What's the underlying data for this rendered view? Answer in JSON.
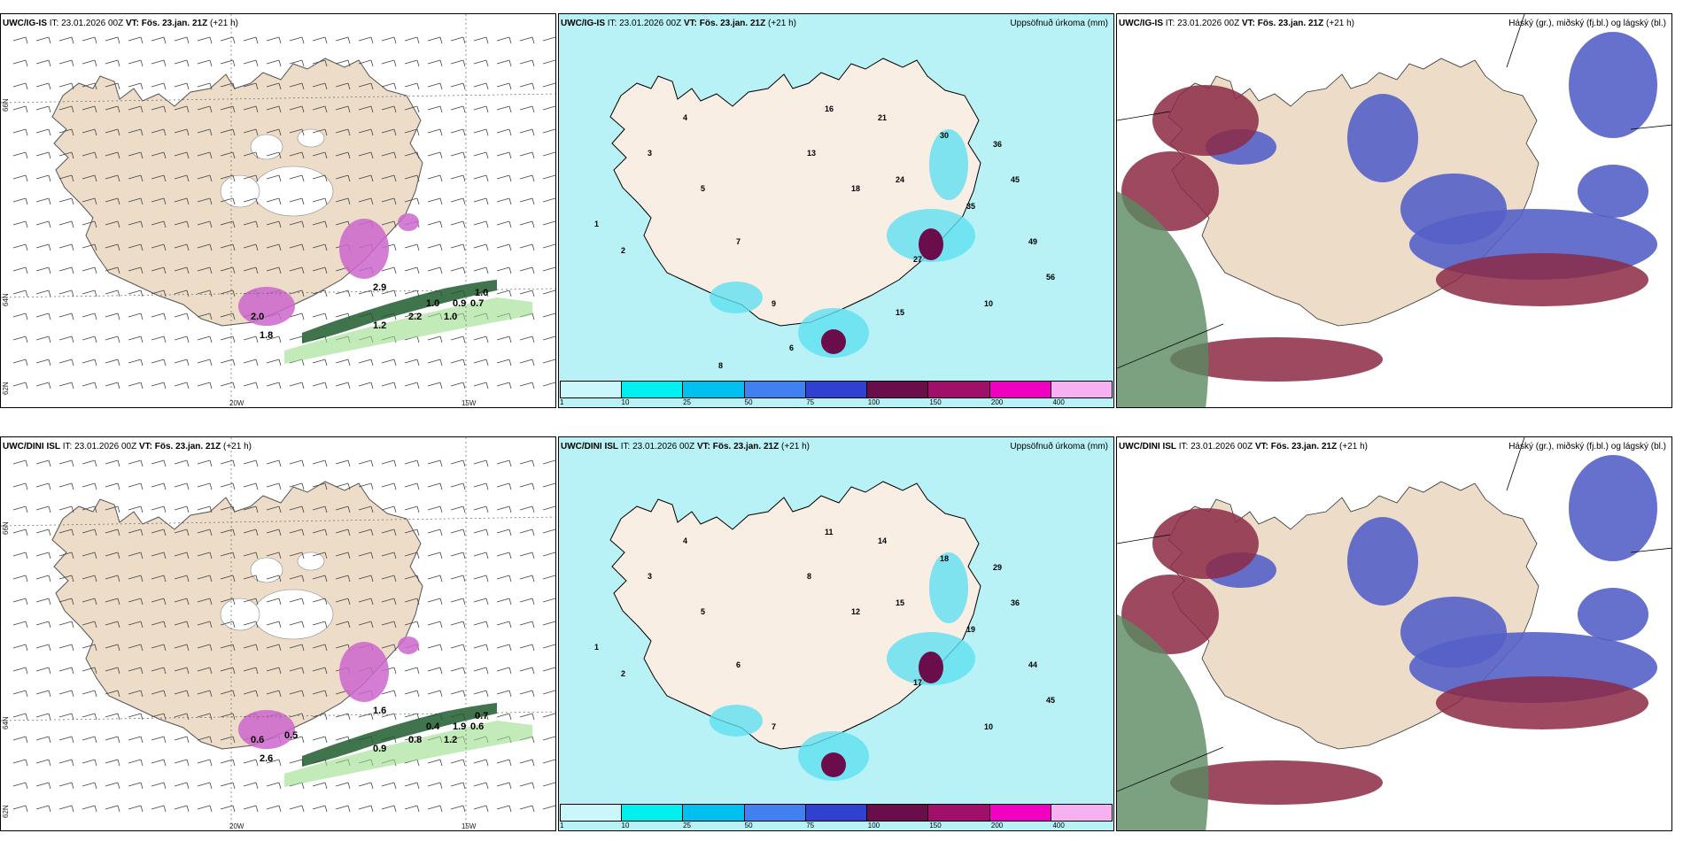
{
  "colors": {
    "land": "#ecdcc8",
    "land_light": "#f8eee4",
    "sea_precip": "#b8f2f6",
    "purple": "#cc66cc",
    "green_dark": "#1f5c2e",
    "green_light": "#9bdc8a",
    "cloud_high": "#8c2a45",
    "cloud_mid": "#5560c8",
    "cloud_low": "#7fbfe8"
  },
  "colorbar": {
    "colors": [
      "#c9f7fb",
      "#00f0f0",
      "#00c0f0",
      "#4080f0",
      "#3040d0",
      "#6a0d4a",
      "#a0106a",
      "#f000c0",
      "#f7b0f0"
    ],
    "labels": [
      "1",
      "10",
      "25",
      "50",
      "75",
      "100",
      "150",
      "200",
      "400"
    ]
  },
  "panels": [
    {
      "id": "p1",
      "model": "UWC/IG-IS",
      "it": "IT: 23.01.2026 00Z",
      "vt_label": "VT:",
      "vt": "Fös. 23.jan. 21Z",
      "lead": "(+21 h)",
      "right": "",
      "type": "wind",
      "row": 0,
      "col": 0,
      "labels": [
        {
          "t": "2.0"
        },
        {
          "t": "1.8"
        },
        {
          "t": "2.9"
        },
        {
          "t": "1.0"
        },
        {
          "t": "0.9"
        },
        {
          "t": "0.7"
        },
        {
          "t": "1.0"
        },
        {
          "t": "2.2"
        },
        {
          "t": "1.2"
        },
        {
          "t": "1.0"
        }
      ],
      "lon": [
        "20W",
        "15W"
      ],
      "lat": [
        "66N",
        "64N",
        "62N"
      ]
    },
    {
      "id": "p2",
      "model": "UWC/IG-IS",
      "it": "IT: 23.01.2026 00Z",
      "vt_label": "VT:",
      "vt": "Fös. 23.jan. 21Z",
      "lead": "(+21 h)",
      "right": "Uppsöfnuð úrkoma (mm)",
      "type": "precip",
      "row": 0,
      "col": 1,
      "labels": [
        "1",
        "2",
        "3",
        "4",
        "5",
        "7",
        "9",
        "13",
        "16",
        "18",
        "21",
        "24",
        "27",
        "30",
        "35",
        "36",
        "45",
        "49",
        "56",
        "10",
        "15",
        "6",
        "8"
      ]
    },
    {
      "id": "p3",
      "model": "UWC/IG-IS",
      "it": "IT: 23.01.2026 00Z",
      "vt_label": "VT:",
      "vt": "Fös. 23.jan. 21Z",
      "lead": "(+21 h)",
      "right": "Háský (gr.), miðský (fj.bl.) og lágský (bl.)",
      "type": "cloud",
      "row": 0,
      "col": 2
    },
    {
      "id": "p4",
      "model": "UWC/DINI ISL",
      "it": "IT: 23.01.2026 00Z",
      "vt_label": "VT:",
      "vt": "Fös. 23.jan. 21Z",
      "lead": "(+21 h)",
      "right": "",
      "type": "wind",
      "row": 1,
      "col": 0,
      "labels": [
        {
          "t": "0.6"
        },
        {
          "t": "2.6"
        },
        {
          "t": "1.6"
        },
        {
          "t": "0.4"
        },
        {
          "t": "1.9"
        },
        {
          "t": "0.6"
        },
        {
          "t": "0.7"
        },
        {
          "t": "0.8"
        },
        {
          "t": "0.9"
        },
        {
          "t": "1.2"
        },
        {
          "t": "0.5"
        }
      ],
      "lon": [
        "20W",
        "15W"
      ],
      "lat": [
        "66N",
        "64N",
        "62N"
      ]
    },
    {
      "id": "p5",
      "model": "UWC/DINI ISL",
      "it": "IT: 23.01.2026 00Z",
      "vt_label": "VT:",
      "vt": "Fös. 23.jan. 21Z",
      "lead": "(+21 h)",
      "right": "Uppsöfnuð úrkoma (mm)",
      "type": "precip",
      "row": 1,
      "col": 1,
      "labels": [
        "1",
        "2",
        "3",
        "4",
        "5",
        "6",
        "7",
        "8",
        "11",
        "12",
        "14",
        "15",
        "17",
        "18",
        "19",
        "29",
        "36",
        "44",
        "45",
        "10"
      ]
    },
    {
      "id": "p6",
      "model": "UWC/DINI ISL",
      "it": "IT: 23.01.2026 00Z",
      "vt_label": "VT:",
      "vt": "Fös. 23.jan. 21Z",
      "lead": "(+21 h)",
      "right": "Háský (gr.), miðský (fj.bl.) og lágský (bl.)",
      "type": "cloud",
      "row": 1,
      "col": 2
    }
  ]
}
